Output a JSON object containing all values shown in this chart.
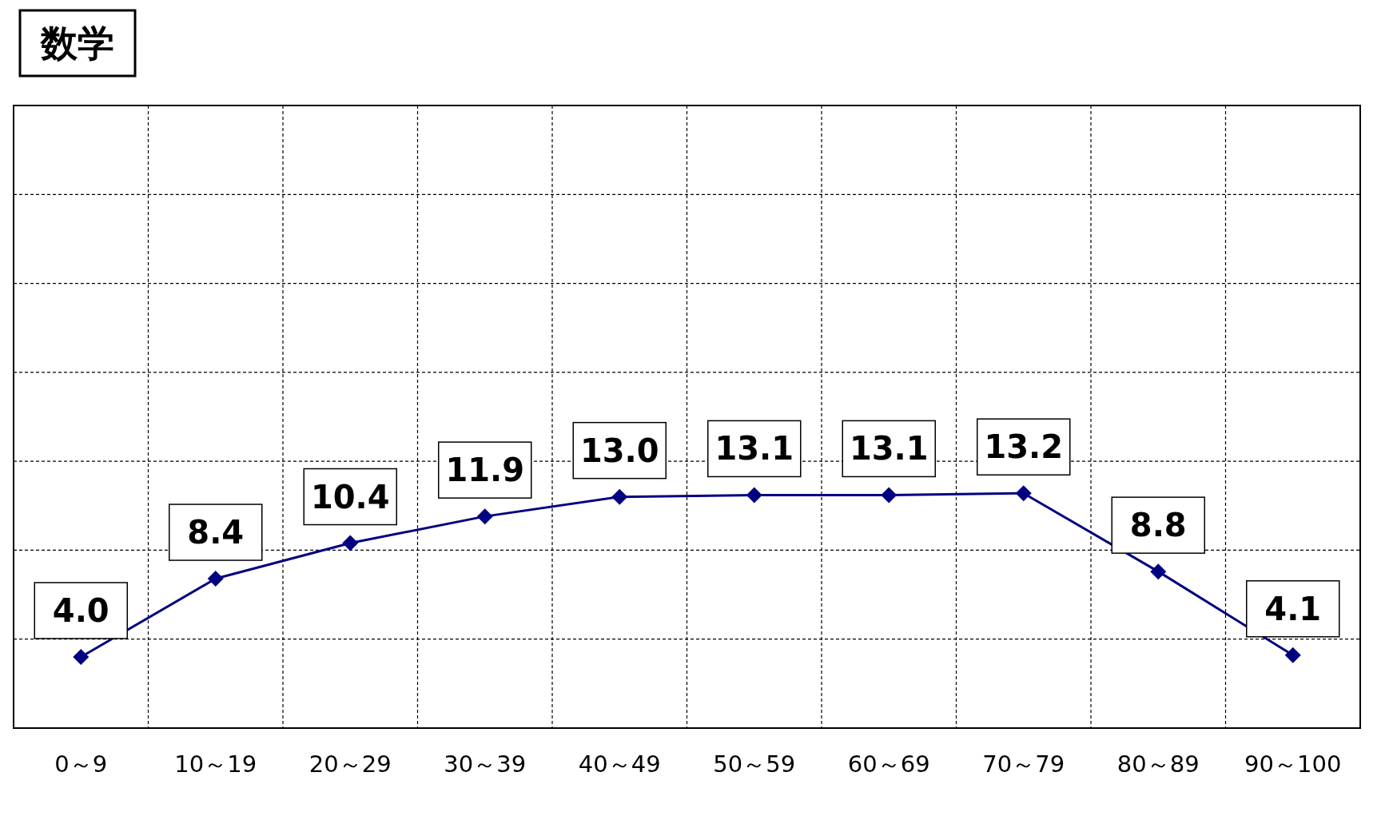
{
  "chart_data": {
    "type": "line",
    "title": "数学",
    "categories": [
      "0～9",
      "10～19",
      "20～29",
      "30～39",
      "40～49",
      "50～59",
      "60～69",
      "70～79",
      "80～89",
      "90～100"
    ],
    "values": [
      4.0,
      8.4,
      10.4,
      11.9,
      13.0,
      13.1,
      13.1,
      13.2,
      8.8,
      4.1
    ],
    "value_labels": [
      "4.0",
      "8.4",
      "10.4",
      "11.9",
      "13.0",
      "13.1",
      "13.1",
      "13.2",
      "8.8",
      "4.1"
    ],
    "color": "#000080",
    "marker": "diamond",
    "line_style": "solid",
    "grid": true,
    "tick_labels": "x",
    "ylim": [
      0,
      35
    ],
    "yticks": [
      {
        "value": 0,
        "label": null
      },
      {
        "value": 5,
        "label": null
      },
      {
        "value": 10,
        "label": null
      },
      {
        "value": 15,
        "label": null
      },
      {
        "value": 20,
        "label": null
      },
      {
        "value": 25,
        "label": null
      },
      {
        "value": 30,
        "label": null
      },
      {
        "value": 35,
        "label": null
      }
    ]
  }
}
